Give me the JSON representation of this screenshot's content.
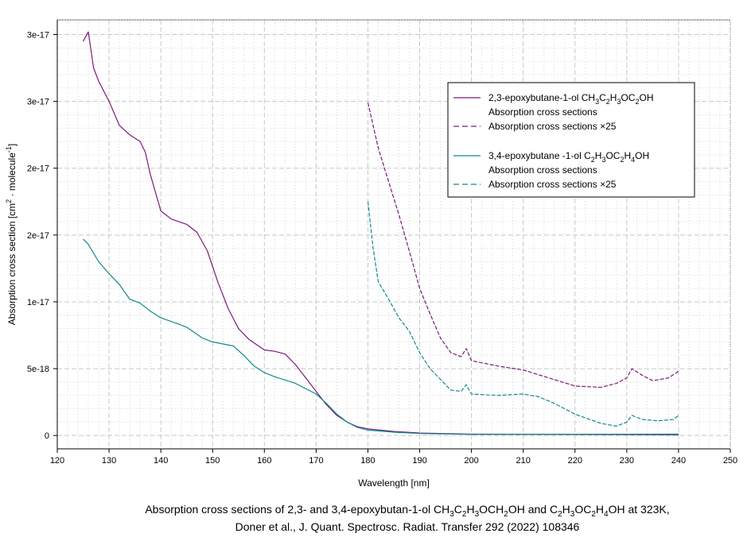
{
  "chart_data": {
    "type": "line",
    "title": "",
    "xlabel": "Wavelength [nm]",
    "ylabel_segments": [
      {
        "t": "Absorption cross section [cm"
      },
      {
        "t": "2",
        "sup": true
      },
      {
        "t": " · molecule"
      },
      {
        "t": "-1",
        "sup": true
      },
      {
        "t": "]"
      }
    ],
    "xlim": [
      120,
      250
    ],
    "ylim": [
      -1e-18,
      3.11e-17
    ],
    "grid": true,
    "x_ticks": [
      120,
      130,
      140,
      150,
      160,
      170,
      180,
      190,
      200,
      210,
      220,
      230,
      240,
      250
    ],
    "x_tick_labels": [
      "120",
      "130",
      "140",
      "150",
      "160",
      "170",
      "180",
      "190",
      "200",
      "210",
      "220",
      "230",
      "240",
      "250"
    ],
    "y_ticks": [
      0,
      5e-18,
      1e-17,
      1.5e-17,
      2e-17,
      2.5e-17,
      3e-17
    ],
    "y_tick_labels": [
      "0",
      "5e-18",
      "1e-17",
      "2e-17",
      "2e-17",
      "3e-17",
      "3e-17"
    ],
    "y_unit_scale": 1e-18,
    "legend_placement": "top-right",
    "series": [
      {
        "name": "2,3-epoxybutane-1-ol Absorption cross sections",
        "color": "#7b1a7b",
        "dashed": false,
        "x": [
          125,
          126,
          127,
          128,
          130,
          132,
          134,
          136,
          137,
          138,
          140,
          142,
          145,
          147,
          149,
          151,
          153,
          155,
          157,
          160,
          162,
          164,
          166,
          168,
          170,
          172,
          174,
          176,
          178,
          180,
          185,
          190,
          200,
          240
        ],
        "y": [
          29.5,
          30.2,
          27.5,
          26.5,
          25.0,
          23.2,
          22.5,
          22.0,
          21.2,
          19.5,
          16.8,
          16.2,
          15.8,
          15.2,
          13.8,
          11.5,
          9.5,
          8.0,
          7.2,
          6.4,
          6.3,
          6.1,
          5.3,
          4.3,
          3.3,
          2.3,
          1.5,
          1.0,
          0.65,
          0.5,
          0.3,
          0.18,
          0.1,
          0.05
        ]
      },
      {
        "name": "2,3-epoxybutane-1-ol Absorption cross sections ×25",
        "color": "#7b1a7b",
        "dashed": true,
        "x": [
          180,
          182,
          184,
          186,
          188,
          190,
          192,
          194,
          196,
          198,
          199,
          200,
          205,
          210,
          215,
          220,
          225,
          228,
          230,
          231,
          233,
          235,
          238,
          240
        ],
        "y": [
          24.9,
          21.5,
          19.0,
          16.5,
          13.8,
          11.0,
          9.1,
          7.3,
          6.2,
          5.9,
          6.5,
          5.6,
          5.2,
          4.9,
          4.3,
          3.7,
          3.6,
          3.9,
          4.3,
          5.0,
          4.5,
          4.1,
          4.3,
          4.8
        ]
      },
      {
        "name": "3,4-epoxybutane-1-ol Absorption cross sections",
        "color": "#13898a",
        "dashed": false,
        "x": [
          125,
          126,
          128,
          130,
          132,
          134,
          136,
          138,
          140,
          143,
          145,
          148,
          150,
          154,
          156,
          158,
          160,
          162,
          166,
          170,
          172,
          174,
          176,
          178,
          180,
          185,
          190,
          200,
          240
        ],
        "y": [
          14.7,
          14.3,
          13.0,
          12.1,
          11.3,
          10.2,
          9.9,
          9.3,
          8.8,
          8.4,
          8.1,
          7.3,
          7.0,
          6.7,
          6.0,
          5.2,
          4.7,
          4.4,
          3.9,
          3.1,
          2.4,
          1.6,
          1.0,
          0.6,
          0.4,
          0.25,
          0.15,
          0.08,
          0.1
        ]
      },
      {
        "name": "3,4-epoxybutane-1-ol Absorption cross sections ×25",
        "color": "#13898a",
        "dashed": true,
        "x": [
          180,
          181,
          182,
          184,
          186,
          188,
          190,
          192,
          194,
          196,
          198,
          199,
          200,
          205,
          210,
          213,
          216,
          220,
          225,
          228,
          230,
          231,
          233,
          236,
          239,
          240
        ],
        "y": [
          17.5,
          14.0,
          11.5,
          10.2,
          8.8,
          7.8,
          6.2,
          5.0,
          4.2,
          3.4,
          3.3,
          3.8,
          3.1,
          3.0,
          3.1,
          2.9,
          2.4,
          1.6,
          0.9,
          0.7,
          1.0,
          1.5,
          1.2,
          1.1,
          1.2,
          1.5
        ]
      }
    ],
    "legend": [
      {
        "color": "#7b1a7b",
        "dashed": false,
        "name_segments": [
          {
            "t": "2,3-epoxybutane-1-ol  CH"
          },
          {
            "t": "3",
            "sub": true
          },
          {
            "t": "C"
          },
          {
            "t": "2",
            "sub": true
          },
          {
            "t": "H"
          },
          {
            "t": "3",
            "sub": true
          },
          {
            "t": "OC"
          },
          {
            "t": "2",
            "sub": true
          },
          {
            "t": "OH"
          }
        ],
        "label": "Absorption cross sections"
      },
      {
        "color": "#7b1a7b",
        "dashed": true,
        "label": "Absorption cross sections ×25"
      },
      {
        "color": "#13898a",
        "dashed": false,
        "name_segments": [
          {
            "t": "3,4-epoxybutane -1-ol  C"
          },
          {
            "t": "2",
            "sub": true
          },
          {
            "t": "H"
          },
          {
            "t": "3",
            "sub": true
          },
          {
            "t": "OC"
          },
          {
            "t": "2",
            "sub": true
          },
          {
            "t": "H"
          },
          {
            "t": "4",
            "sub": true
          },
          {
            "t": "OH"
          }
        ],
        "label": "Absorption cross sections"
      },
      {
        "color": "#13898a",
        "dashed": true,
        "label": "Absorption cross sections ×25"
      }
    ]
  },
  "caption": {
    "line1": [
      {
        "t": "Absorption cross sections of 2,3- and 3,4-epoxybutan-1-ol CH"
      },
      {
        "t": "3",
        "sub": true
      },
      {
        "t": "C"
      },
      {
        "t": "2",
        "sub": true
      },
      {
        "t": "H"
      },
      {
        "t": "3",
        "sub": true
      },
      {
        "t": "OCH"
      },
      {
        "t": "2",
        "sub": true
      },
      {
        "t": "OH and C"
      },
      {
        "t": "2",
        "sub": true
      },
      {
        "t": "H"
      },
      {
        "t": "3",
        "sub": true
      },
      {
        "t": "OC"
      },
      {
        "t": "2",
        "sub": true
      },
      {
        "t": "H"
      },
      {
        "t": "4",
        "sub": true
      },
      {
        "t": "OH at 323K,"
      }
    ],
    "line2": "Doner et al., J. Quant. Spectrosc. Radiat. Transfer 292 (2022) 108346"
  }
}
